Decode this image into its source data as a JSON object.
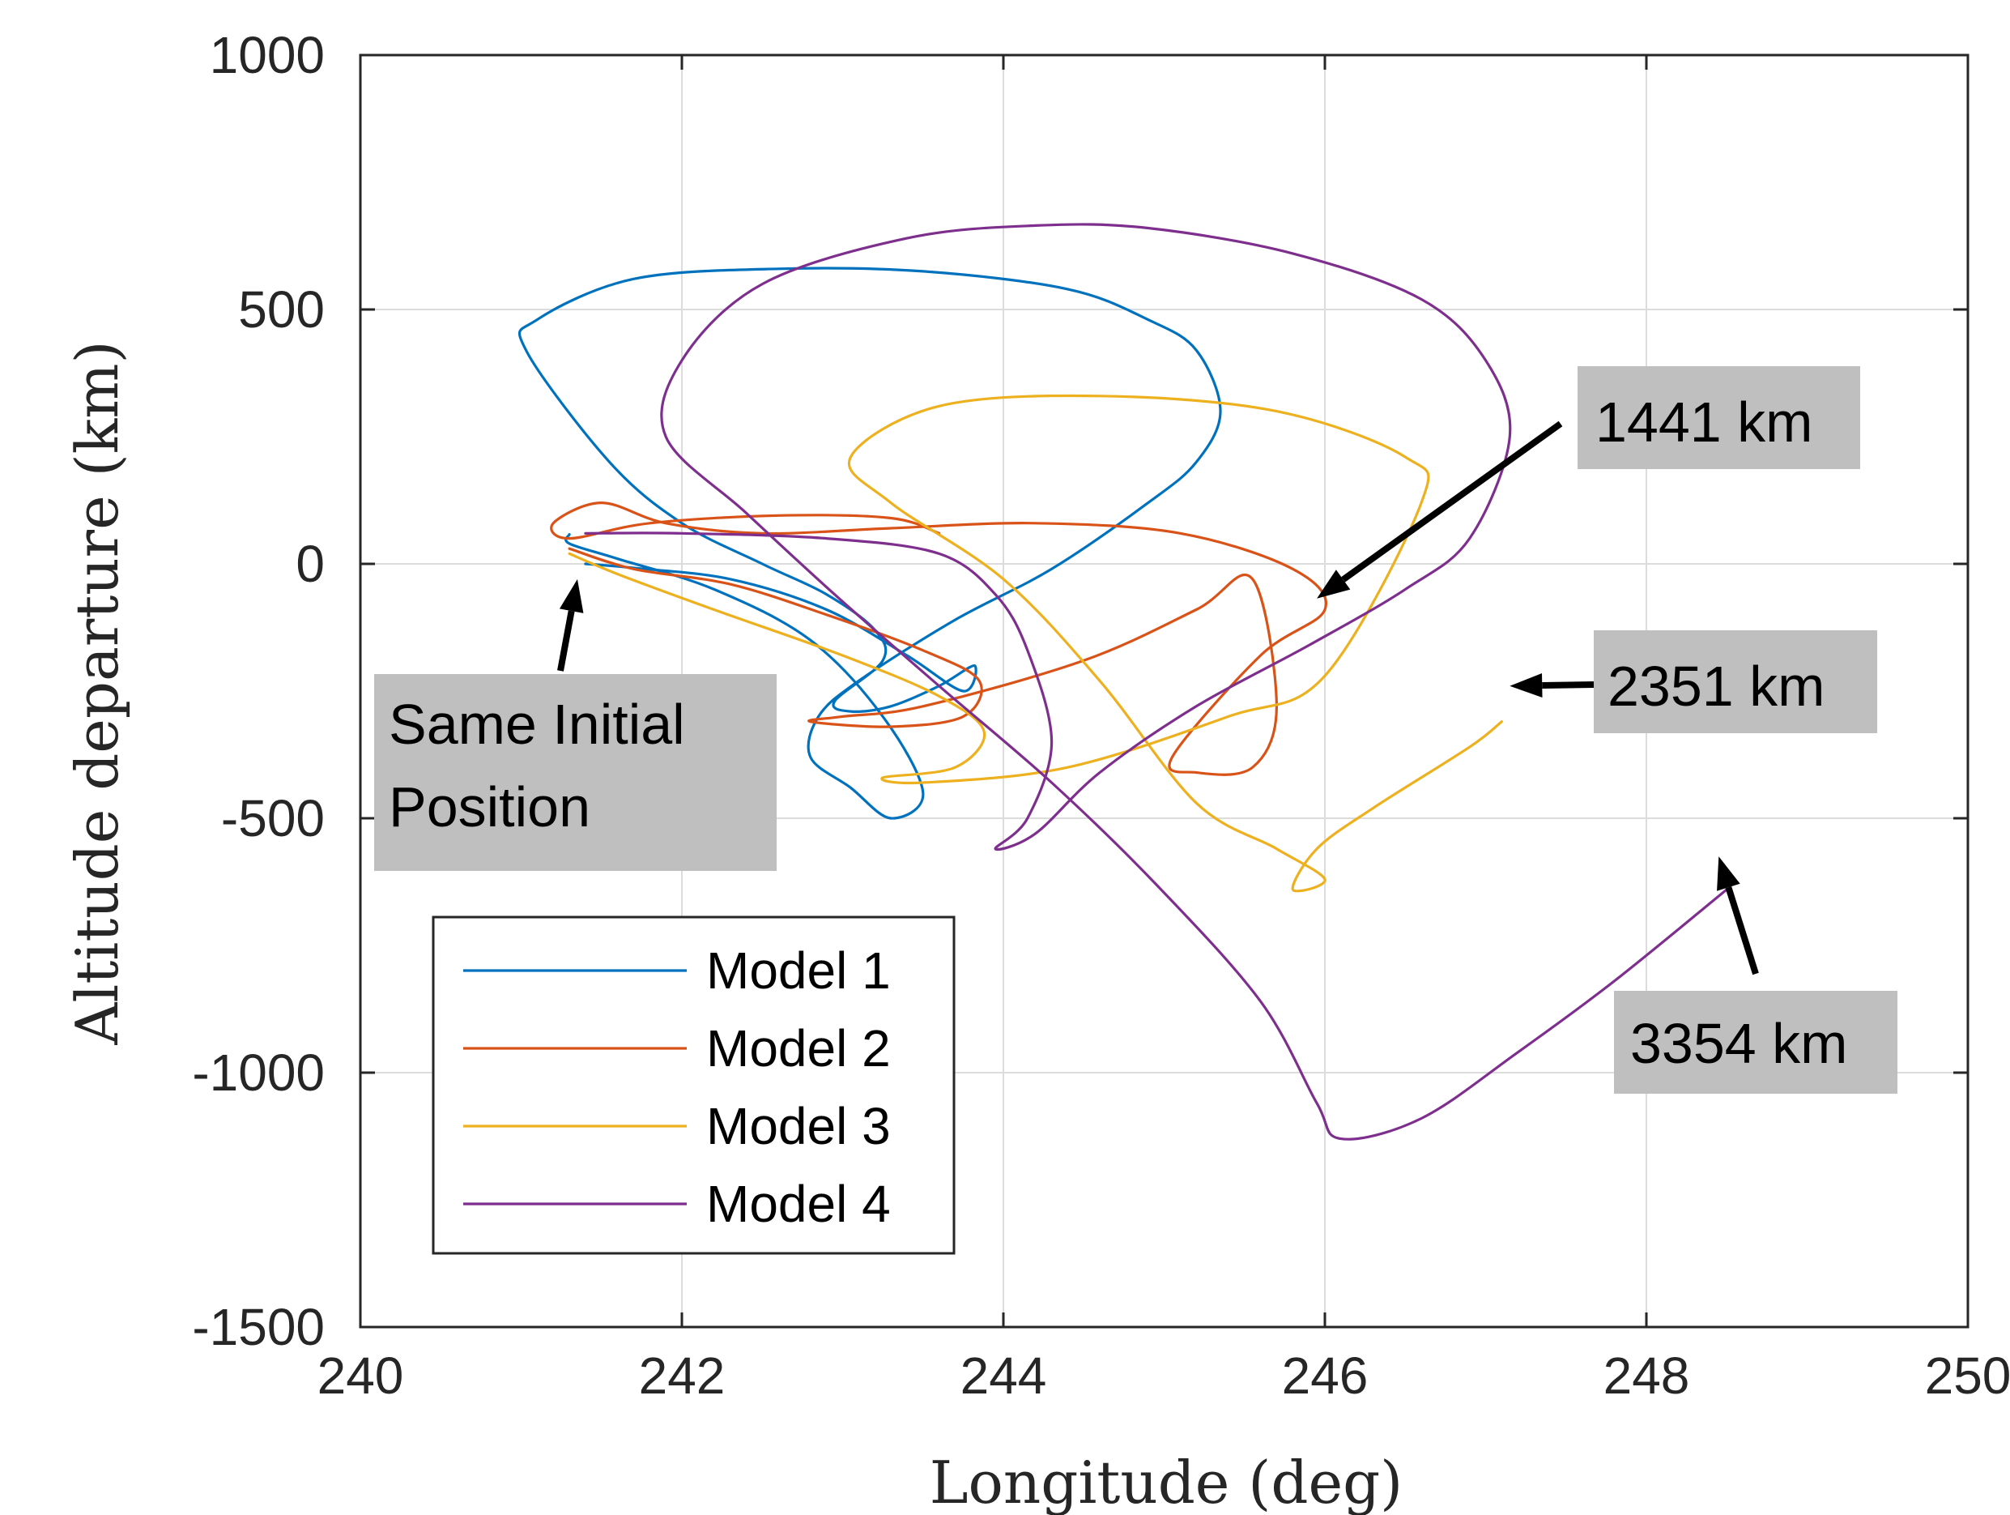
{
  "chart_data": {
    "type": "line",
    "title": "",
    "xlabel": "Longitude (deg)",
    "ylabel": "Altitude departure (km)",
    "xlim": [
      240,
      250
    ],
    "ylim": [
      -1500,
      1000
    ],
    "xticks": [
      240,
      242,
      244,
      246,
      248,
      250
    ],
    "xtick_labels": [
      "240",
      "242",
      "244",
      "246",
      "248",
      "250"
    ],
    "yticks": [
      -1500,
      -1000,
      -500,
      0,
      500,
      1000
    ],
    "ytick_labels": [
      "-1500",
      "-1000",
      "-500",
      "0",
      "500",
      "1000"
    ],
    "grid": true,
    "legend_position": "bottom-left",
    "series": [
      {
        "name": "Model 1",
        "color": "#0072BD",
        "x": [
          241.4,
          241.7,
          242.3,
          242.9,
          243.4,
          243.75,
          243.82,
          243.6,
          243.3,
          243.05,
          242.95,
          243.25,
          243.2,
          242.9,
          242.5,
          242.0,
          241.55,
          241.03,
          241.1,
          241.7,
          242.6,
          243.5,
          244.4,
          244.9,
          245.2,
          245.35,
          245.2,
          244.9,
          244.3,
          243.7,
          243.1,
          242.85,
          242.8,
          243.05,
          243.3,
          243.5,
          243.25,
          242.8,
          242.2,
          241.6,
          241.3,
          241.3
        ],
        "y": [
          0,
          -8,
          -30,
          -90,
          -180,
          -250,
          -200,
          -240,
          -280,
          -290,
          -270,
          -190,
          -130,
          -60,
          0,
          80,
          200,
          420,
          480,
          560,
          580,
          575,
          540,
          480,
          420,
          300,
          200,
          120,
          -10,
          -110,
          -230,
          -300,
          -380,
          -440,
          -500,
          -450,
          -300,
          -150,
          -50,
          10,
          40,
          58
        ]
      },
      {
        "name": "Model 2",
        "color": "#D95319",
        "x": [
          241.3,
          241.7,
          242.3,
          242.9,
          243.5,
          243.85,
          243.75,
          243.3,
          242.8,
          243.0,
          243.5,
          244.5,
          245.2,
          245.55,
          245.7,
          245.55,
          245.2,
          245.05,
          245.6,
          246.0,
          245.8,
          245.1,
          244.2,
          243.3,
          242.5,
          241.9,
          241.5,
          241.2,
          241.3,
          241.8,
          242.6,
          243.3,
          243.6
        ],
        "y": [
          30,
          -10,
          -40,
          -100,
          -170,
          -230,
          -300,
          -320,
          -310,
          -300,
          -280,
          -190,
          -90,
          -30,
          -280,
          -400,
          -410,
          -380,
          -180,
          -90,
          -10,
          60,
          80,
          70,
          60,
          80,
          120,
          80,
          50,
          80,
          95,
          90,
          60
        ]
      },
      {
        "name": "Model 3",
        "color": "#EDB120",
        "x": [
          241.3,
          241.6,
          242.2,
          243.0,
          243.6,
          243.88,
          243.7,
          243.25,
          243.5,
          244.4,
          245.4,
          246.0,
          246.6,
          246.5,
          245.7,
          244.6,
          243.6,
          243.05,
          243.3,
          244.0,
          244.6,
          245.2,
          245.7,
          246.0,
          245.8,
          245.95,
          246.3,
          246.9,
          247.1
        ],
        "y": [
          20,
          -20,
          -90,
          -180,
          -260,
          -330,
          -400,
          -420,
          -430,
          -400,
          -300,
          -220,
          120,
          210,
          300,
          330,
          310,
          210,
          120,
          -30,
          -230,
          -470,
          -560,
          -620,
          -640,
          -560,
          -480,
          -360,
          -310
        ]
      },
      {
        "name": "Model 4",
        "color": "#7E2F8E",
        "x": [
          241.4,
          242.0,
          242.9,
          243.6,
          243.95,
          244.15,
          244.3,
          244.15,
          243.95,
          244.2,
          244.6,
          245.2,
          245.9,
          246.5,
          246.9,
          247.15,
          247.0,
          246.6,
          245.8,
          244.9,
          244.2,
          243.4,
          242.5,
          242.0,
          241.9,
          242.4,
          242.95,
          243.6,
          244.3,
          244.95,
          245.6,
          245.95,
          246.1,
          246.6,
          247.2,
          247.8,
          248.5
        ],
        "y": [
          60,
          60,
          50,
          20,
          -60,
          -170,
          -350,
          -500,
          -560,
          -530,
          -410,
          -280,
          -160,
          -50,
          50,
          250,
          400,
          520,
          610,
          660,
          665,
          640,
          550,
          400,
          250,
          100,
          -60,
          -240,
          -430,
          -630,
          -860,
          -1060,
          -1130,
          -1090,
          -960,
          -820,
          -640
        ]
      }
    ],
    "annotations": [
      {
        "text": "1441 km",
        "x": 245.95,
        "y": -68
      },
      {
        "text": "2351 km",
        "x": 247.15,
        "y": -240
      },
      {
        "text": "3354 km",
        "x": 248.45,
        "y": -575
      },
      {
        "text": "Same Initial Position",
        "lines": [
          "Same Initial",
          "Position"
        ],
        "x": 241.35,
        "y": -30
      }
    ]
  }
}
